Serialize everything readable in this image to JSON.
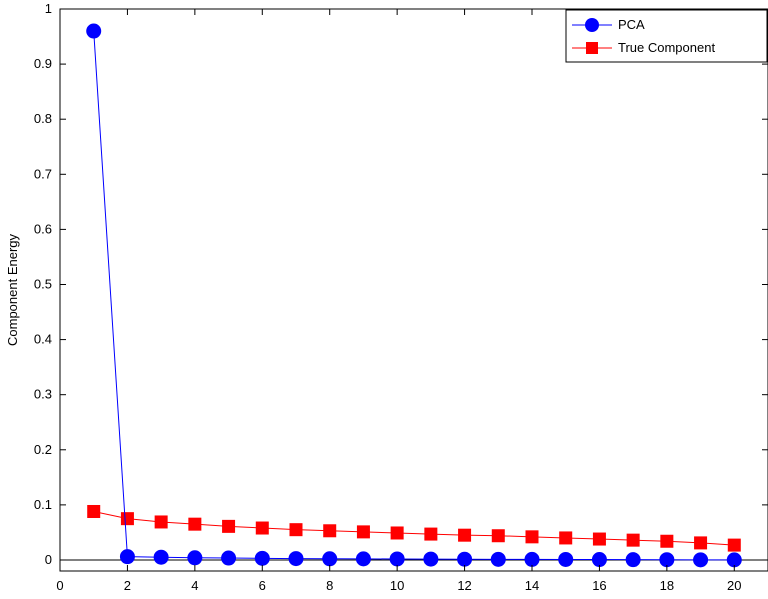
{
  "chart_data": {
    "type": "line",
    "title": "",
    "xlabel": "",
    "ylabel": "Component Energy",
    "xlim": [
      0,
      21
    ],
    "ylim": [
      -0.02,
      1
    ],
    "xticks": [
      0,
      2,
      4,
      6,
      8,
      10,
      12,
      14,
      16,
      18,
      20
    ],
    "yticks": [
      0,
      0.1,
      0.2,
      0.3,
      0.4,
      0.5,
      0.6,
      0.7,
      0.8,
      0.9,
      1
    ],
    "ytick_labels": [
      "0",
      "0.1",
      "0.2",
      "0.3",
      "0.4",
      "0.5",
      "0.6",
      "0.7",
      "0.8",
      "0.9",
      "1"
    ],
    "grid": false,
    "legend_position": "top-right",
    "x": [
      1,
      2,
      3,
      4,
      5,
      6,
      7,
      8,
      9,
      10,
      11,
      12,
      13,
      14,
      15,
      16,
      17,
      18,
      19,
      20
    ],
    "series": [
      {
        "name": "PCA",
        "color": "#0000ff",
        "marker": "circle",
        "values": [
          0.96,
          0.006,
          0.005,
          0.004,
          0.0035,
          0.003,
          0.0025,
          0.0022,
          0.002,
          0.0018,
          0.0016,
          0.0014,
          0.0012,
          0.001,
          0.0009,
          0.0008,
          0.0006,
          0.0005,
          0.0003,
          0.0002
        ]
      },
      {
        "name": "True Component",
        "color": "#ff0000",
        "marker": "square",
        "values": [
          0.088,
          0.075,
          0.069,
          0.065,
          0.061,
          0.058,
          0.055,
          0.053,
          0.051,
          0.049,
          0.047,
          0.045,
          0.044,
          0.042,
          0.04,
          0.038,
          0.036,
          0.034,
          0.031,
          0.027
        ]
      }
    ],
    "reference_line": {
      "y": 0,
      "color": "#000000"
    }
  }
}
